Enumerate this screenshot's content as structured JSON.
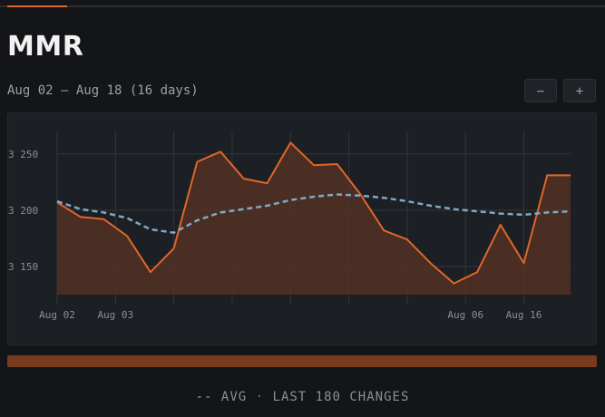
{
  "header": {
    "title": "MMR",
    "date_range": "Aug 02 – Aug 18 (16 days)",
    "zoom_out_label": "−",
    "zoom_in_label": "+"
  },
  "footer": {
    "legend_marker": "--",
    "avg_label": "AVG",
    "separator": "·",
    "changes_label": "LAST 180 CHANGES"
  },
  "colors": {
    "accent": "#e0662a",
    "area_fill": "#5a3324",
    "avg_line": "#7fa9c8",
    "grid": "#33373d"
  },
  "chart_data": {
    "type": "area",
    "title": "MMR",
    "ylim": [
      3125,
      3270
    ],
    "yticks": [
      3150,
      3200,
      3250
    ],
    "ytick_labels": [
      "3 150",
      "3 200",
      "3 250"
    ],
    "x_range": [
      0,
      22
    ],
    "xticks": [
      {
        "x": 0,
        "label": "Aug 02"
      },
      {
        "x": 2.5,
        "label": "Aug 03"
      },
      {
        "x": 5,
        "label": ""
      },
      {
        "x": 7.5,
        "label": ""
      },
      {
        "x": 10,
        "label": ""
      },
      {
        "x": 12.5,
        "label": ""
      },
      {
        "x": 15,
        "label": ""
      },
      {
        "x": 17.5,
        "label": "Aug 06"
      },
      {
        "x": 20,
        "label": "Aug 16"
      }
    ],
    "grid": true,
    "series": [
      {
        "name": "MMR",
        "kind": "area",
        "x": [
          0,
          1,
          2,
          3,
          4,
          5,
          6,
          7,
          8,
          9,
          10,
          11,
          12,
          13,
          14,
          15,
          16,
          17,
          18,
          19,
          20,
          21,
          22
        ],
        "values": [
          3207,
          3194,
          3192,
          3177,
          3145,
          3166,
          3243,
          3252,
          3228,
          3224,
          3260,
          3240,
          3241,
          3214,
          3182,
          3174,
          3153,
          3135,
          3145,
          3187,
          3153,
          3231,
          3231
        ]
      },
      {
        "name": "AVG",
        "kind": "line",
        "x": [
          0,
          1,
          2,
          3,
          4,
          5,
          6,
          7,
          8,
          9,
          10,
          11,
          12,
          13,
          14,
          15,
          16,
          17,
          18,
          19,
          20,
          21,
          22
        ],
        "values": [
          3208,
          3201,
          3198,
          3193,
          3183,
          3180,
          3191,
          3198,
          3201,
          3204,
          3209,
          3212,
          3214,
          3213,
          3211,
          3208,
          3204,
          3201,
          3199,
          3197,
          3196,
          3198,
          3199
        ]
      }
    ]
  }
}
